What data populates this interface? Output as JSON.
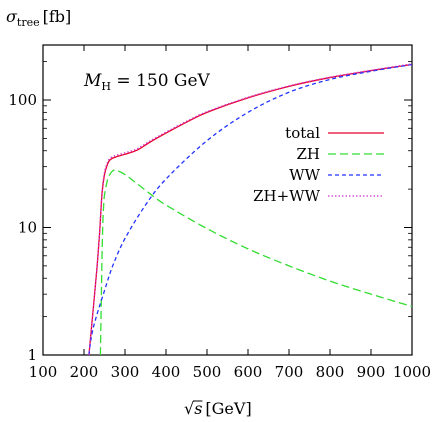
{
  "chart_data": {
    "type": "line",
    "y_axis_label": {
      "symbol": "σ",
      "subscript": "tree",
      "unit": "[fb]"
    },
    "x_axis_label": {
      "symbol": "√s",
      "unit": "[GeV]"
    },
    "annotation": {
      "symbol": "M",
      "subscript": "H",
      "text": " = 150 GeV"
    },
    "x_scale": "linear",
    "y_scale": "log",
    "xlim": [
      100,
      1000
    ],
    "ylim": [
      1,
      270
    ],
    "x_ticks": [
      "100",
      "200",
      "300",
      "400",
      "500",
      "600",
      "700",
      "800",
      "900",
      "1000"
    ],
    "y_ticks": [
      "1",
      "10",
      "100"
    ],
    "legend_position": "right",
    "series": [
      {
        "name": "total",
        "color": "#e8002a",
        "dash": "solid",
        "x": [
          212,
          218,
          225,
          232,
          238,
          244,
          250,
          256,
          262,
          270,
          280,
          300,
          330,
          360,
          400,
          450,
          500,
          600,
          700,
          800,
          900,
          1000
        ],
        "y": [
          1.0,
          1.6,
          2.8,
          5.0,
          9.0,
          18.5,
          26.0,
          30.5,
          33.5,
          35.0,
          36.0,
          37.5,
          40.5,
          46.5,
          55.0,
          67.0,
          80.0,
          104.0,
          128.0,
          150.0,
          170.0,
          190.0
        ]
      },
      {
        "name": "ZH",
        "color": "#33dd33",
        "dash": "8,4",
        "x": [
          240,
          242,
          244,
          246,
          248,
          250,
          255,
          260,
          270,
          280,
          300,
          330,
          360,
          400,
          500,
          600,
          700,
          800,
          900,
          1000
        ],
        "y": [
          1.0,
          2.5,
          6.0,
          11.0,
          15.0,
          18.0,
          22.0,
          25.0,
          27.8,
          28.0,
          26.0,
          22.0,
          18.5,
          15.0,
          9.8,
          6.8,
          5.0,
          3.8,
          3.0,
          2.4
        ]
      },
      {
        "name": "WW",
        "color": "#2233ff",
        "dash": "4,3",
        "x": [
          212,
          215,
          220,
          230,
          250,
          270,
          300,
          350,
          400,
          500,
          600,
          700,
          800,
          900,
          1000
        ],
        "y": [
          1.0,
          1.2,
          1.5,
          2.0,
          3.2,
          5.0,
          8.2,
          15.0,
          24.0,
          48.0,
          80.0,
          115.0,
          145.0,
          168.0,
          190.0
        ]
      },
      {
        "name": "ZH+WW",
        "color": "#cc33cc",
        "dash": "1.5,2",
        "x": [
          212,
          218,
          225,
          232,
          238,
          244,
          250,
          256,
          262,
          270,
          280,
          300,
          330,
          360,
          400,
          450,
          500,
          600,
          700,
          800,
          900,
          1000
        ],
        "y": [
          1.0,
          1.6,
          2.8,
          5.0,
          9.2,
          19.0,
          27.0,
          31.5,
          34.5,
          36.0,
          37.0,
          38.5,
          41.5,
          47.5,
          56.0,
          68.0,
          81.0,
          105.0,
          129.0,
          151.0,
          171.0,
          192.0
        ]
      }
    ]
  }
}
